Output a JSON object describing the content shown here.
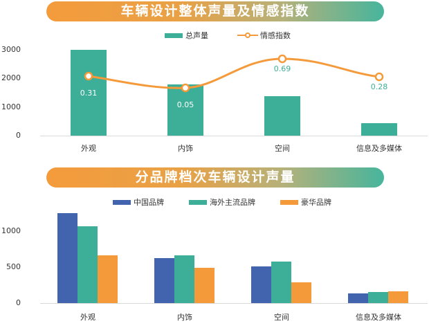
{
  "colors": {
    "teal": "#3daf98",
    "orange": "#f59a3a",
    "blue": "#4264ae"
  },
  "chart1": {
    "title": "车辆设计整体声量及情感指数",
    "legend": [
      "总声量",
      "情感指数"
    ]
  },
  "chart2": {
    "title": "分品牌档次车辆设计声量",
    "legend": [
      "中国品牌",
      "海外主流品牌",
      "豪华品牌"
    ]
  },
  "chart_data": [
    {
      "type": "bar+line",
      "title": "车辆设计整体声量及情感指数",
      "categories": [
        "外观",
        "内饰",
        "空间",
        "信息及多媒体"
      ],
      "series": [
        {
          "name": "总声量",
          "type": "bar",
          "values": [
            2990,
            1790,
            1380,
            440
          ]
        },
        {
          "name": "情感指数",
          "type": "line",
          "values": [
            0.31,
            0.05,
            0.69,
            0.28
          ]
        }
      ],
      "yticks": [
        "0",
        "1000",
        "2000",
        "3000"
      ],
      "ylim": [
        0,
        3000
      ],
      "legend_position": "top"
    },
    {
      "type": "bar",
      "title": "分品牌档次车辆设计声量",
      "categories": [
        "外观",
        "内饰",
        "空间",
        "信息及多媒体"
      ],
      "series": [
        {
          "name": "中国品牌",
          "values": [
            1250,
            625,
            510,
            135
          ]
        },
        {
          "name": "海外主流品牌",
          "values": [
            1070,
            665,
            580,
            150
          ]
        },
        {
          "name": "豪华品牌",
          "values": [
            660,
            490,
            290,
            160
          ]
        }
      ],
      "yticks": [
        "0",
        "500",
        "1000"
      ],
      "ylim": [
        0,
        1250
      ],
      "legend_position": "top"
    }
  ]
}
